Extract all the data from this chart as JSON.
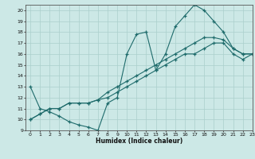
{
  "xlabel": "Humidex (Indice chaleur)",
  "bg_color": "#cce8e6",
  "grid_color": "#aacfcc",
  "line_color": "#1e6b6b",
  "xlim": [
    -0.5,
    23
  ],
  "ylim": [
    9,
    20.5
  ],
  "xticks": [
    0,
    1,
    2,
    3,
    4,
    5,
    6,
    7,
    8,
    9,
    10,
    11,
    12,
    13,
    14,
    15,
    16,
    17,
    18,
    19,
    20,
    21,
    22,
    23
  ],
  "yticks": [
    9,
    10,
    11,
    12,
    13,
    14,
    15,
    16,
    17,
    18,
    19,
    20
  ],
  "series1_x": [
    0,
    1,
    2,
    3,
    4,
    5,
    6,
    7,
    8,
    9,
    10,
    11,
    12,
    13,
    14,
    15,
    16,
    17,
    18,
    19,
    20,
    21,
    22,
    23
  ],
  "series1_y": [
    13,
    11,
    10.7,
    10.3,
    9.8,
    9.5,
    9.3,
    9,
    11.5,
    12,
    16,
    17.8,
    18,
    14.5,
    16,
    18.5,
    19.5,
    20.5,
    20,
    19,
    18,
    16.5,
    16,
    16
  ],
  "series2_x": [
    0,
    1,
    2,
    3,
    4,
    5,
    6,
    7,
    8,
    9,
    10,
    11,
    12,
    13,
    14,
    15,
    16,
    17,
    18,
    19,
    20,
    21,
    22,
    23
  ],
  "series2_y": [
    10,
    10.5,
    11,
    11,
    11.5,
    11.5,
    11.5,
    11.8,
    12.5,
    13,
    13.5,
    14,
    14.5,
    15,
    15.5,
    16,
    16.5,
    17,
    17.5,
    17.5,
    17.3,
    16.5,
    16,
    16
  ],
  "series3_x": [
    0,
    1,
    2,
    3,
    4,
    5,
    6,
    7,
    8,
    9,
    10,
    11,
    12,
    13,
    14,
    15,
    16,
    17,
    18,
    19,
    20,
    21,
    22,
    23
  ],
  "series3_y": [
    10,
    10.5,
    11,
    11,
    11.5,
    11.5,
    11.5,
    11.8,
    12,
    12.5,
    13,
    13.5,
    14,
    14.5,
    15,
    15.5,
    16,
    16,
    16.5,
    17,
    17,
    16,
    15.5,
    16
  ]
}
